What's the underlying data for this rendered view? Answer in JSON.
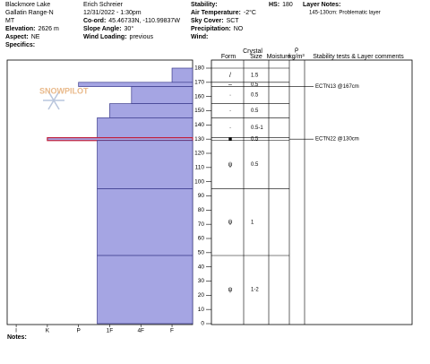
{
  "header": {
    "col1": [
      {
        "value": "Blackmore Lake"
      },
      {
        "value": "Gallatin Range-N"
      },
      {
        "value": "MT"
      },
      {
        "label": "Elevation:",
        "value": "2626 m"
      },
      {
        "label": "Aspect:",
        "value": "NE"
      },
      {
        "label": "Specifics:"
      }
    ],
    "col2": [
      {
        "value": "Erich  Schreier"
      },
      {
        "value": "12/31/2022 - 1:30pm"
      },
      {
        "label": "Co-ord:",
        "value": "45.46733N, -110.99837W"
      },
      {
        "label": "Slope Angle:",
        "value": "30°"
      },
      {
        "label": "Wind Loading:",
        "value": "previous"
      }
    ],
    "col3": [
      {
        "label": "Stability:"
      },
      {
        "label": "Air Temperature:",
        "value": "-2°C"
      },
      {
        "label": "Sky Cover:",
        "value": "SCT"
      },
      {
        "label": "Precipitation:",
        "value": "NO"
      },
      {
        "label": "Wind:"
      }
    ],
    "hs": {
      "label": "HS:",
      "value": "180"
    },
    "layer_notes": {
      "label": "Layer Notes:",
      "note": "145-130cm: Problematic layer"
    }
  },
  "watermark": "SNOWPILOT",
  "columns": {
    "crystal": "Crystal",
    "form": "Form",
    "size": "Size",
    "moisture": "Moisture",
    "rho": "ρ",
    "rho_unit": "kg/m³",
    "stability": "Stability tests & Layer comments"
  },
  "profile": {
    "depth_lim": [
      0,
      180
    ],
    "depth_ticks": [
      0,
      10,
      20,
      30,
      40,
      50,
      60,
      70,
      80,
      90,
      100,
      110,
      120,
      130,
      140,
      150,
      160,
      170,
      180
    ],
    "hardness_lim": [
      0.34,
      6.29
    ],
    "hardness_ticks": [
      {
        "value": 6,
        "label": "I"
      },
      {
        "value": 5,
        "label": "K"
      },
      {
        "value": 4,
        "label": "P"
      },
      {
        "value": 3,
        "label": "1F"
      },
      {
        "value": 2,
        "label": "4F"
      },
      {
        "value": 1,
        "label": "F"
      }
    ],
    "color": "#a5a5e3",
    "layers": [
      {
        "top": 180,
        "bottom": 170,
        "hardness": 1,
        "form": "/",
        "size": "1.5"
      },
      {
        "top": 170,
        "bottom": 167,
        "hardness": 4,
        "form": "–",
        "size": "0.5"
      },
      {
        "top": 167,
        "bottom": 155,
        "hardness": 2.3,
        "form": "·",
        "size": "0.5"
      },
      {
        "top": 155,
        "bottom": 145,
        "hardness": 3,
        "form": "·",
        "size": "0.5"
      },
      {
        "top": 145,
        "bottom": 131,
        "hardness": 3.4,
        "form": "·",
        "size": "0.5-1"
      },
      {
        "top": 131,
        "bottom": 129,
        "hardness": 5,
        "form": "■",
        "size": "0.5",
        "outline": "#c0203c"
      },
      {
        "top": 129,
        "bottom": 95,
        "hardness": 3.4,
        "form": "ψ",
        "size": "0.5"
      },
      {
        "top": 95,
        "bottom": 48,
        "hardness": 3.4,
        "form": "ψ",
        "size": "1"
      },
      {
        "top": 48,
        "bottom": 0,
        "hardness": 3.4,
        "form": "ψ",
        "size": "1-2"
      }
    ],
    "tests": [
      {
        "label": "ECTN13 @167cm",
        "depth": 167
      },
      {
        "label": "ECTN22 @130cm",
        "depth": 130
      }
    ]
  },
  "notes": {
    "label": "Notes:"
  }
}
